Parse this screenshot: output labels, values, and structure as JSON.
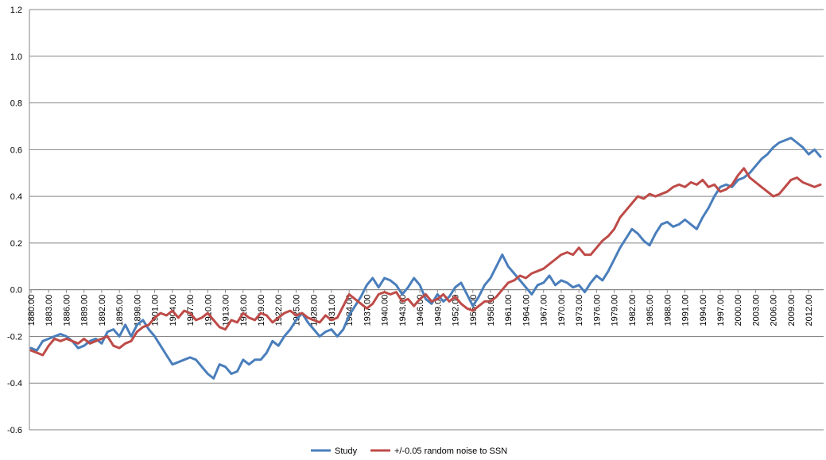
{
  "chart_data": {
    "type": "line",
    "title": "",
    "xlabel": "",
    "ylabel": "",
    "ylim": [
      -0.6,
      1.2
    ],
    "yticks": [
      "-0.6",
      "-0.4",
      "-0.2",
      "0.0",
      "0.2",
      "0.4",
      "0.6",
      "0.8",
      "1.0",
      "1.2"
    ],
    "xlim": [
      1880,
      2014
    ],
    "x_tick_labels": [
      "1880.00",
      "1883.00",
      "1886.00",
      "1889.00",
      "1892.00",
      "1895.00",
      "1898.00",
      "1901.00",
      "1904.00",
      "1907.00",
      "1910.00",
      "1913.00",
      "1916.00",
      "1919.00",
      "1922.00",
      "1925.00",
      "1928.00",
      "1931.00",
      "1934.00",
      "1937.00",
      "1940.00",
      "1943.00",
      "1946.00",
      "1949.00",
      "1952.00",
      "1955.00",
      "1958.00",
      "1961.00",
      "1964.00",
      "1967.00",
      "1970.00",
      "1973.00",
      "1976.00",
      "1979.00",
      "1982.00",
      "1985.00",
      "1988.00",
      "1991.00",
      "1994.00",
      "1997.00",
      "2000.00",
      "2003.00",
      "2006.00",
      "2009.00",
      "2012.00"
    ],
    "grid": "horizontal",
    "legend_position": "bottom",
    "series": [
      {
        "name": "Study",
        "color": "#4a7ebb",
        "points": [
          [
            1880,
            -0.25
          ],
          [
            1881,
            -0.26
          ],
          [
            1882,
            -0.22
          ],
          [
            1883,
            -0.21
          ],
          [
            1884,
            -0.2
          ],
          [
            1885,
            -0.19
          ],
          [
            1886,
            -0.2
          ],
          [
            1887,
            -0.22
          ],
          [
            1888,
            -0.25
          ],
          [
            1889,
            -0.24
          ],
          [
            1890,
            -0.22
          ],
          [
            1891,
            -0.21
          ],
          [
            1892,
            -0.23
          ],
          [
            1893,
            -0.18
          ],
          [
            1894,
            -0.17
          ],
          [
            1895,
            -0.2
          ],
          [
            1896,
            -0.15
          ],
          [
            1897,
            -0.2
          ],
          [
            1898,
            -0.15
          ],
          [
            1899,
            -0.13
          ],
          [
            1900,
            -0.17
          ],
          [
            1901,
            -0.2
          ],
          [
            1902,
            -0.24
          ],
          [
            1903,
            -0.28
          ],
          [
            1904,
            -0.32
          ],
          [
            1905,
            -0.31
          ],
          [
            1906,
            -0.3
          ],
          [
            1907,
            -0.29
          ],
          [
            1908,
            -0.3
          ],
          [
            1909,
            -0.33
          ],
          [
            1910,
            -0.36
          ],
          [
            1911,
            -0.38
          ],
          [
            1912,
            -0.32
          ],
          [
            1913,
            -0.33
          ],
          [
            1914,
            -0.36
          ],
          [
            1915,
            -0.35
          ],
          [
            1916,
            -0.3
          ],
          [
            1917,
            -0.32
          ],
          [
            1918,
            -0.3
          ],
          [
            1919,
            -0.3
          ],
          [
            1920,
            -0.27
          ],
          [
            1921,
            -0.22
          ],
          [
            1922,
            -0.24
          ],
          [
            1923,
            -0.2
          ],
          [
            1924,
            -0.17
          ],
          [
            1925,
            -0.13
          ],
          [
            1926,
            -0.1
          ],
          [
            1927,
            -0.14
          ],
          [
            1928,
            -0.17
          ],
          [
            1929,
            -0.2
          ],
          [
            1930,
            -0.18
          ],
          [
            1931,
            -0.17
          ],
          [
            1932,
            -0.2
          ],
          [
            1933,
            -0.17
          ],
          [
            1934,
            -0.11
          ],
          [
            1935,
            -0.07
          ],
          [
            1936,
            -0.03
          ],
          [
            1937,
            0.02
          ],
          [
            1938,
            0.05
          ],
          [
            1939,
            0.01
          ],
          [
            1940,
            0.05
          ],
          [
            1941,
            0.04
          ],
          [
            1942,
            0.02
          ],
          [
            1943,
            -0.02
          ],
          [
            1944,
            0.01
          ],
          [
            1945,
            0.05
          ],
          [
            1946,
            0.02
          ],
          [
            1947,
            -0.04
          ],
          [
            1948,
            -0.06
          ],
          [
            1949,
            -0.02
          ],
          [
            1950,
            -0.05
          ],
          [
            1951,
            -0.03
          ],
          [
            1952,
            0.01
          ],
          [
            1953,
            0.03
          ],
          [
            1954,
            -0.02
          ],
          [
            1955,
            -0.07
          ],
          [
            1956,
            -0.03
          ],
          [
            1957,
            0.02
          ],
          [
            1958,
            0.05
          ],
          [
            1959,
            0.1
          ],
          [
            1960,
            0.15
          ],
          [
            1961,
            0.1
          ],
          [
            1962,
            0.07
          ],
          [
            1963,
            0.04
          ],
          [
            1964,
            0.01
          ],
          [
            1965,
            -0.02
          ],
          [
            1966,
            0.02
          ],
          [
            1967,
            0.03
          ],
          [
            1968,
            0.06
          ],
          [
            1969,
            0.02
          ],
          [
            1970,
            0.04
          ],
          [
            1971,
            0.03
          ],
          [
            1972,
            0.01
          ],
          [
            1973,
            0.02
          ],
          [
            1974,
            -0.01
          ],
          [
            1975,
            0.03
          ],
          [
            1976,
            0.06
          ],
          [
            1977,
            0.04
          ],
          [
            1978,
            0.08
          ],
          [
            1979,
            0.13
          ],
          [
            1980,
            0.18
          ],
          [
            1981,
            0.22
          ],
          [
            1982,
            0.26
          ],
          [
            1983,
            0.24
          ],
          [
            1984,
            0.21
          ],
          [
            1985,
            0.19
          ],
          [
            1986,
            0.24
          ],
          [
            1987,
            0.28
          ],
          [
            1988,
            0.29
          ],
          [
            1989,
            0.27
          ],
          [
            1990,
            0.28
          ],
          [
            1991,
            0.3
          ],
          [
            1992,
            0.28
          ],
          [
            1993,
            0.26
          ],
          [
            1994,
            0.31
          ],
          [
            1995,
            0.35
          ],
          [
            1996,
            0.4
          ],
          [
            1997,
            0.44
          ],
          [
            1998,
            0.45
          ],
          [
            1999,
            0.44
          ],
          [
            2000,
            0.47
          ],
          [
            2001,
            0.48
          ],
          [
            2002,
            0.5
          ],
          [
            2003,
            0.53
          ],
          [
            2004,
            0.56
          ],
          [
            2005,
            0.58
          ],
          [
            2006,
            0.61
          ],
          [
            2007,
            0.63
          ],
          [
            2008,
            0.64
          ],
          [
            2009,
            0.65
          ],
          [
            2010,
            0.63
          ],
          [
            2011,
            0.61
          ],
          [
            2012,
            0.58
          ],
          [
            2013,
            0.6
          ],
          [
            2014,
            0.57
          ]
        ]
      },
      {
        "name": "+/-0.05 random noise to SSN",
        "color": "#be4b48",
        "points": [
          [
            1880,
            -0.26
          ],
          [
            1881,
            -0.27
          ],
          [
            1882,
            -0.28
          ],
          [
            1883,
            -0.24
          ],
          [
            1884,
            -0.21
          ],
          [
            1885,
            -0.22
          ],
          [
            1886,
            -0.21
          ],
          [
            1887,
            -0.22
          ],
          [
            1888,
            -0.23
          ],
          [
            1889,
            -0.21
          ],
          [
            1890,
            -0.23
          ],
          [
            1891,
            -0.22
          ],
          [
            1892,
            -0.21
          ],
          [
            1893,
            -0.2
          ],
          [
            1894,
            -0.24
          ],
          [
            1895,
            -0.25
          ],
          [
            1896,
            -0.23
          ],
          [
            1897,
            -0.22
          ],
          [
            1898,
            -0.18
          ],
          [
            1899,
            -0.16
          ],
          [
            1900,
            -0.15
          ],
          [
            1901,
            -0.12
          ],
          [
            1902,
            -0.1
          ],
          [
            1903,
            -0.11
          ],
          [
            1904,
            -0.09
          ],
          [
            1905,
            -0.12
          ],
          [
            1906,
            -0.09
          ],
          [
            1907,
            -0.1
          ],
          [
            1908,
            -0.13
          ],
          [
            1909,
            -0.12
          ],
          [
            1910,
            -0.1
          ],
          [
            1911,
            -0.13
          ],
          [
            1912,
            -0.16
          ],
          [
            1913,
            -0.17
          ],
          [
            1914,
            -0.13
          ],
          [
            1915,
            -0.14
          ],
          [
            1916,
            -0.1
          ],
          [
            1917,
            -0.12
          ],
          [
            1918,
            -0.13
          ],
          [
            1919,
            -0.1
          ],
          [
            1920,
            -0.11
          ],
          [
            1921,
            -0.14
          ],
          [
            1922,
            -0.12
          ],
          [
            1923,
            -0.1
          ],
          [
            1924,
            -0.09
          ],
          [
            1925,
            -0.11
          ],
          [
            1926,
            -0.1
          ],
          [
            1927,
            -0.12
          ],
          [
            1928,
            -0.13
          ],
          [
            1929,
            -0.14
          ],
          [
            1930,
            -0.11
          ],
          [
            1931,
            -0.13
          ],
          [
            1932,
            -0.12
          ],
          [
            1933,
            -0.07
          ],
          [
            1934,
            -0.02
          ],
          [
            1935,
            -0.04
          ],
          [
            1936,
            -0.06
          ],
          [
            1937,
            -0.08
          ],
          [
            1938,
            -0.06
          ],
          [
            1939,
            -0.02
          ],
          [
            1940,
            -0.01
          ],
          [
            1941,
            -0.02
          ],
          [
            1942,
            -0.01
          ],
          [
            1943,
            -0.05
          ],
          [
            1944,
            -0.04
          ],
          [
            1945,
            -0.07
          ],
          [
            1946,
            -0.04
          ],
          [
            1947,
            -0.02
          ],
          [
            1948,
            -0.05
          ],
          [
            1949,
            -0.04
          ],
          [
            1950,
            -0.02
          ],
          [
            1951,
            -0.05
          ],
          [
            1952,
            -0.03
          ],
          [
            1953,
            -0.06
          ],
          [
            1954,
            -0.08
          ],
          [
            1955,
            -0.09
          ],
          [
            1956,
            -0.07
          ],
          [
            1957,
            -0.05
          ],
          [
            1958,
            -0.05
          ],
          [
            1959,
            -0.03
          ],
          [
            1960,
            0.0
          ],
          [
            1961,
            0.03
          ],
          [
            1962,
            0.04
          ],
          [
            1963,
            0.06
          ],
          [
            1964,
            0.05
          ],
          [
            1965,
            0.07
          ],
          [
            1966,
            0.08
          ],
          [
            1967,
            0.09
          ],
          [
            1968,
            0.11
          ],
          [
            1969,
            0.13
          ],
          [
            1970,
            0.15
          ],
          [
            1971,
            0.16
          ],
          [
            1972,
            0.15
          ],
          [
            1973,
            0.18
          ],
          [
            1974,
            0.15
          ],
          [
            1975,
            0.15
          ],
          [
            1976,
            0.18
          ],
          [
            1977,
            0.21
          ],
          [
            1978,
            0.23
          ],
          [
            1979,
            0.26
          ],
          [
            1980,
            0.31
          ],
          [
            1981,
            0.34
          ],
          [
            1982,
            0.37
          ],
          [
            1983,
            0.4
          ],
          [
            1984,
            0.39
          ],
          [
            1985,
            0.41
          ],
          [
            1986,
            0.4
          ],
          [
            1987,
            0.41
          ],
          [
            1988,
            0.42
          ],
          [
            1989,
            0.44
          ],
          [
            1990,
            0.45
          ],
          [
            1991,
            0.44
          ],
          [
            1992,
            0.46
          ],
          [
            1993,
            0.45
          ],
          [
            1994,
            0.47
          ],
          [
            1995,
            0.44
          ],
          [
            1996,
            0.45
          ],
          [
            1997,
            0.42
          ],
          [
            1998,
            0.43
          ],
          [
            1999,
            0.45
          ],
          [
            2000,
            0.49
          ],
          [
            2001,
            0.52
          ],
          [
            2002,
            0.48
          ],
          [
            2003,
            0.46
          ],
          [
            2004,
            0.44
          ],
          [
            2005,
            0.42
          ],
          [
            2006,
            0.4
          ],
          [
            2007,
            0.41
          ],
          [
            2008,
            0.44
          ],
          [
            2009,
            0.47
          ],
          [
            2010,
            0.48
          ],
          [
            2011,
            0.46
          ],
          [
            2012,
            0.45
          ],
          [
            2013,
            0.44
          ],
          [
            2014,
            0.45
          ]
        ]
      }
    ]
  }
}
